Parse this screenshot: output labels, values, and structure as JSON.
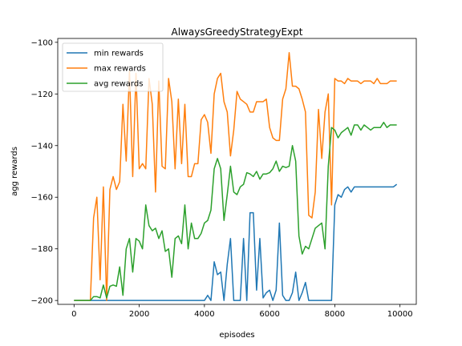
{
  "chart_data": {
    "type": "line",
    "title": "AlwaysGreedyStrategyExpt",
    "xlabel": "episodes",
    "ylabel": "agg rewards",
    "xlim": [
      -500,
      10500
    ],
    "ylim": [
      -201.5,
      -98.5
    ],
    "x_ticks": [
      0,
      2000,
      4000,
      6000,
      8000,
      10000
    ],
    "y_ticks": [
      -200,
      -180,
      -160,
      -140,
      -120,
      -100
    ],
    "legend_position": "top-left",
    "grid": false,
    "x": [
      0,
      100,
      200,
      300,
      400,
      500,
      600,
      700,
      800,
      900,
      1000,
      1100,
      1200,
      1300,
      1400,
      1500,
      1600,
      1700,
      1800,
      1900,
      2000,
      2100,
      2200,
      2300,
      2400,
      2500,
      2600,
      2700,
      2800,
      2900,
      3000,
      3100,
      3200,
      3300,
      3400,
      3500,
      3600,
      3700,
      3800,
      3900,
      4000,
      4100,
      4200,
      4300,
      4400,
      4500,
      4600,
      4700,
      4800,
      4900,
      5000,
      5100,
      5200,
      5300,
      5400,
      5500,
      5600,
      5700,
      5800,
      5900,
      6000,
      6100,
      6200,
      6300,
      6400,
      6500,
      6600,
      6700,
      6800,
      6900,
      7000,
      7100,
      7200,
      7300,
      7400,
      7500,
      7600,
      7700,
      7800,
      7900,
      8000,
      8100,
      8200,
      8300,
      8400,
      8500,
      8600,
      8700,
      8800,
      8900,
      9000,
      9100,
      9200,
      9300,
      9400,
      9500,
      9600,
      9700,
      9800,
      9900
    ],
    "series": [
      {
        "name": "min rewards",
        "color": "#1f77b4",
        "values": [
          -200,
          -200,
          -200,
          -200,
          -200,
          -200,
          -200,
          -200,
          -200,
          -200,
          -200,
          -200,
          -200,
          -200,
          -200,
          -200,
          -200,
          -200,
          -200,
          -200,
          -200,
          -200,
          -200,
          -200,
          -200,
          -200,
          -200,
          -200,
          -200,
          -200,
          -200,
          -200,
          -200,
          -200,
          -200,
          -200,
          -200,
          -200,
          -200,
          -200,
          -200,
          -198,
          -200,
          -185,
          -190,
          -189,
          -200,
          -186,
          -176,
          -200,
          -200,
          -200,
          -176,
          -200,
          -166,
          -166,
          -196,
          -176,
          -199,
          -197,
          -196,
          -200,
          -196,
          -170,
          -198,
          -200,
          -200,
          -197,
          -189,
          -200,
          -197,
          -193,
          -200,
          -200,
          -200,
          -200,
          -200,
          -200,
          -200,
          -200,
          -163,
          -159,
          -160,
          -157,
          -156,
          -158,
          -156,
          -156,
          -156,
          -156,
          -156,
          -156,
          -156,
          -156,
          -156,
          -156,
          -156,
          -156,
          -156,
          -155
        ]
      },
      {
        "name": "max rewards",
        "color": "#ff7f0e",
        "values": [
          -200,
          -200,
          -200,
          -200,
          -200,
          -200,
          -168,
          -160,
          -192,
          -156,
          -200,
          -157,
          -152,
          -157,
          -154,
          -124,
          -146,
          -111,
          -152,
          -112,
          -149,
          -147,
          -149,
          -114,
          -124,
          -158,
          -115,
          -148,
          -149,
          -114,
          -123,
          -149,
          -122,
          -147,
          -124,
          -152,
          -152,
          -147,
          -147,
          -130,
          -128,
          -131,
          -143,
          -120,
          -114,
          -112,
          -123,
          -127,
          -144,
          -134,
          -119,
          -122,
          -123,
          -124,
          -127,
          -127,
          -123,
          -123,
          -123,
          -122,
          -133,
          -137,
          -138,
          -138,
          -122,
          -118,
          -104,
          -117,
          -117,
          -118,
          -122,
          -127,
          -167,
          -168,
          -158,
          -126,
          -145,
          -127,
          -120,
          -163,
          -114,
          -115,
          -115,
          -116,
          -114,
          -115,
          -115,
          -115,
          -116,
          -115,
          -115,
          -115,
          -116,
          -114,
          -116,
          -116,
          -116,
          -115,
          -115,
          -115
        ]
      },
      {
        "name": "avg rewards",
        "color": "#2ca02c",
        "values": [
          -200,
          -200,
          -200,
          -200,
          -200,
          -200,
          -198.5,
          -198.5,
          -199,
          -194,
          -199,
          -194.5,
          -194,
          -194.5,
          -187,
          -198,
          -180,
          -176,
          -189,
          -176,
          -177,
          -180,
          -163,
          -171,
          -173,
          -172,
          -176,
          -173,
          -181,
          -180,
          -191,
          -176,
          -175,
          -178,
          -163,
          -180,
          -170,
          -176,
          -176,
          -174,
          -170,
          -169,
          -165,
          -149,
          -145,
          -149,
          -169,
          -159,
          -148,
          -158,
          -159,
          -156,
          -155,
          -150.5,
          -151,
          -152,
          -150,
          -153,
          -151,
          -151,
          -150.5,
          -149,
          -146,
          -150,
          -148,
          -148.5,
          -148,
          -140,
          -146,
          -175,
          -182,
          -179,
          -180,
          -176,
          -172,
          -171,
          -170,
          -180,
          -148,
          -133,
          -134,
          -137,
          -135,
          -134,
          -133,
          -136,
          -132,
          -132,
          -134,
          -132,
          -133,
          -134,
          -133,
          -133,
          -133,
          -131,
          -133,
          -132,
          -132,
          -132
        ]
      }
    ]
  }
}
